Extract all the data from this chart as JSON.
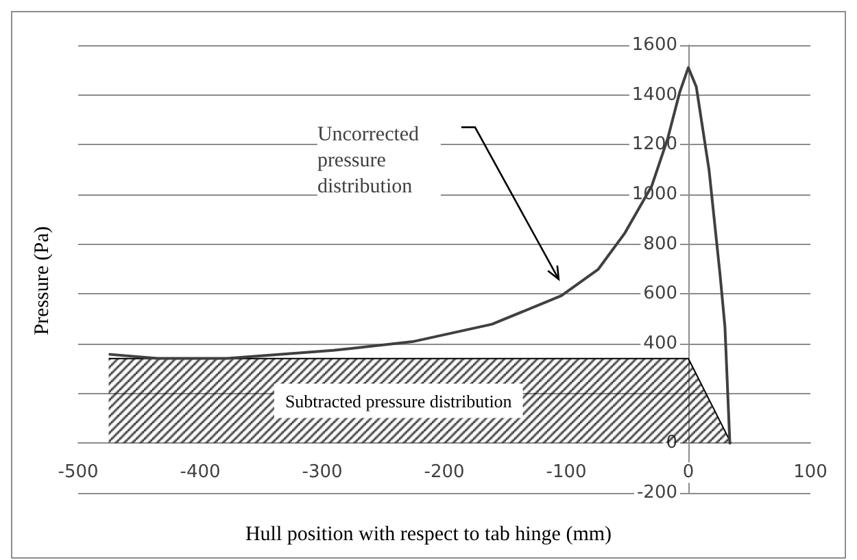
{
  "chart_data": {
    "type": "line",
    "xlabel": "Hull position with respect to tab hinge (mm)",
    "ylabel": "Pressure (Pa)",
    "xlim": [
      -500,
      100
    ],
    "xticks": [
      -500,
      -400,
      -300,
      -200,
      -100,
      0,
      100
    ],
    "ylim": [
      -200,
      1600
    ],
    "yticks": [
      -200,
      0,
      {
        "value": 200,
        "label": null
      },
      400,
      600,
      800,
      1000,
      1200,
      1400,
      1600
    ],
    "grid": "y",
    "legend": false,
    "marker": "none",
    "line_style": "solid",
    "series": [
      {
        "name": "Subtracted pressure distribution",
        "type": "area",
        "color": "#000000",
        "x": [
          -475,
          0,
          35
        ],
        "values": [
          340,
          340,
          0
        ]
      },
      {
        "name": "Uncorrected pressure distribution",
        "type": "line",
        "color": "#404040",
        "x": [
          -474,
          -435,
          -378,
          -291,
          -226,
          -161,
          -104,
          -74,
          -52,
          -30,
          -17,
          -7,
          0,
          6.5,
          17,
          26,
          30,
          34
        ],
        "values": [
          357,
          341,
          341,
          373,
          408,
          478,
          593,
          698,
          845,
          1034,
          1223,
          1412,
          1510,
          1433,
          1097,
          677,
          467,
          0
        ]
      }
    ]
  }
}
